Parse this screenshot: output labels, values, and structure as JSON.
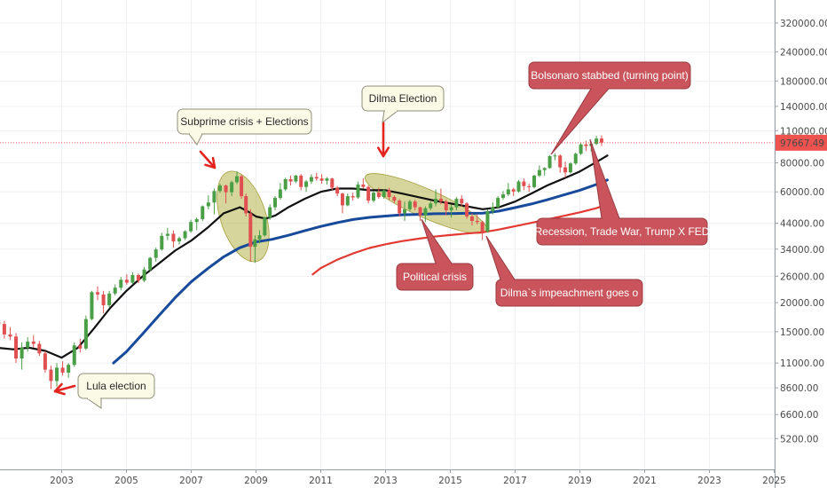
{
  "chart_data": {
    "type": "candlestick",
    "instrument_scale": "log",
    "grid": true,
    "x_ticks": [
      "2003",
      "2005",
      "2007",
      "2009",
      "2011",
      "2013",
      "2015",
      "2017",
      "2019",
      "2021",
      "2023",
      "2025"
    ],
    "y_ticks": [
      "5200.00",
      "6600.00",
      "8600.00",
      "11000.00",
      "15000.00",
      "20000.00",
      "26000.00",
      "34000.00",
      "44000.00",
      "60000.00",
      "80000.00",
      "110000.00",
      "140000.00",
      "180000.00",
      "240000.00",
      "320000.00"
    ],
    "last_price": 97667.49,
    "last_price_label": "97667.49",
    "colors": {
      "up": "#4a9e46",
      "down": "#e05050",
      "ma_black": "#111111",
      "ma_blue": "#174a9a",
      "ma_red": "#e23a32",
      "highlight": "#b5b24a",
      "price_line": "#ef5350",
      "label_bg": "#ef5350",
      "dark_callout_bg": "#c9545c",
      "light_callout_bg": "#fbfae6"
    },
    "candles": [
      {
        "t": 2001.05,
        "o": 16500,
        "h": 18000,
        "l": 15300,
        "c": 16200
      },
      {
        "t": 2001.23,
        "o": 16200,
        "h": 16700,
        "l": 14000,
        "c": 14600
      },
      {
        "t": 2001.41,
        "o": 14600,
        "h": 15700,
        "l": 13800,
        "c": 14300
      },
      {
        "t": 2001.59,
        "o": 14300,
        "h": 14800,
        "l": 11000,
        "c": 11500
      },
      {
        "t": 2001.77,
        "o": 11500,
        "h": 13500,
        "l": 10300,
        "c": 12800
      },
      {
        "t": 2001.95,
        "o": 12800,
        "h": 14200,
        "l": 12300,
        "c": 13600
      },
      {
        "t": 2002.13,
        "o": 13600,
        "h": 14500,
        "l": 12800,
        "c": 13300
      },
      {
        "t": 2002.31,
        "o": 13300,
        "h": 13700,
        "l": 11800,
        "c": 12100
      },
      {
        "t": 2002.49,
        "o": 12100,
        "h": 12400,
        "l": 10000,
        "c": 10300
      },
      {
        "t": 2002.67,
        "o": 10300,
        "h": 10700,
        "l": 8500,
        "c": 9200
      },
      {
        "t": 2002.85,
        "o": 9200,
        "h": 11000,
        "l": 8700,
        "c": 10500
      },
      {
        "t": 2003.03,
        "o": 10500,
        "h": 11200,
        "l": 9700,
        "c": 10000
      },
      {
        "t": 2003.21,
        "o": 10000,
        "h": 11000,
        "l": 9500,
        "c": 10800
      },
      {
        "t": 2003.39,
        "o": 10800,
        "h": 13500,
        "l": 10600,
        "c": 13100
      },
      {
        "t": 2003.57,
        "o": 13100,
        "h": 14000,
        "l": 12200,
        "c": 12700
      },
      {
        "t": 2003.75,
        "o": 12700,
        "h": 17600,
        "l": 12500,
        "c": 17000
      },
      {
        "t": 2003.93,
        "o": 17000,
        "h": 22500,
        "l": 16800,
        "c": 22200
      },
      {
        "t": 2004.11,
        "o": 22200,
        "h": 23500,
        "l": 20500,
        "c": 21700
      },
      {
        "t": 2004.29,
        "o": 21700,
        "h": 22500,
        "l": 18000,
        "c": 19500
      },
      {
        "t": 2004.47,
        "o": 19500,
        "h": 22500,
        "l": 19100,
        "c": 21900
      },
      {
        "t": 2004.65,
        "o": 21900,
        "h": 24000,
        "l": 21500,
        "c": 23200
      },
      {
        "t": 2004.83,
        "o": 23200,
        "h": 25800,
        "l": 22600,
        "c": 25100
      },
      {
        "t": 2005.01,
        "o": 25100,
        "h": 26500,
        "l": 23900,
        "c": 24400
      },
      {
        "t": 2005.19,
        "o": 24400,
        "h": 27000,
        "l": 24000,
        "c": 26300
      },
      {
        "t": 2005.37,
        "o": 26300,
        "h": 26700,
        "l": 24300,
        "c": 24900
      },
      {
        "t": 2005.55,
        "o": 24900,
        "h": 28500,
        "l": 24500,
        "c": 27800
      },
      {
        "t": 2005.73,
        "o": 27800,
        "h": 31500,
        "l": 27300,
        "c": 31200
      },
      {
        "t": 2005.91,
        "o": 31200,
        "h": 34500,
        "l": 30000,
        "c": 33900
      },
      {
        "t": 2006.09,
        "o": 33900,
        "h": 40000,
        "l": 33500,
        "c": 38800
      },
      {
        "t": 2006.27,
        "o": 38800,
        "h": 42000,
        "l": 37200,
        "c": 39600
      },
      {
        "t": 2006.45,
        "o": 39600,
        "h": 41000,
        "l": 34500,
        "c": 36700
      },
      {
        "t": 2006.63,
        "o": 36700,
        "h": 38500,
        "l": 35600,
        "c": 37900
      },
      {
        "t": 2006.81,
        "o": 37900,
        "h": 41000,
        "l": 37200,
        "c": 40600
      },
      {
        "t": 2006.99,
        "o": 40600,
        "h": 45500,
        "l": 40000,
        "c": 44500
      },
      {
        "t": 2007.17,
        "o": 44500,
        "h": 46500,
        "l": 41000,
        "c": 45800
      },
      {
        "t": 2007.35,
        "o": 45800,
        "h": 52500,
        "l": 45000,
        "c": 52000
      },
      {
        "t": 2007.53,
        "o": 52000,
        "h": 58000,
        "l": 50500,
        "c": 54000
      },
      {
        "t": 2007.71,
        "o": 54000,
        "h": 62000,
        "l": 48000,
        "c": 60500
      },
      {
        "t": 2007.89,
        "o": 60500,
        "h": 65000,
        "l": 59500,
        "c": 63900
      },
      {
        "t": 2008.07,
        "o": 63900,
        "h": 64500,
        "l": 53500,
        "c": 59800
      },
      {
        "t": 2008.25,
        "o": 59800,
        "h": 67000,
        "l": 57500,
        "c": 66000
      },
      {
        "t": 2008.41,
        "o": 66000,
        "h": 73500,
        "l": 64800,
        "c": 70000
      },
      {
        "t": 2008.55,
        "o": 70000,
        "h": 71000,
        "l": 56000,
        "c": 57500
      },
      {
        "t": 2008.69,
        "o": 57500,
        "h": 59000,
        "l": 47000,
        "c": 48500
      },
      {
        "t": 2008.83,
        "o": 48500,
        "h": 50500,
        "l": 30000,
        "c": 34800
      },
      {
        "t": 2008.97,
        "o": 34800,
        "h": 39000,
        "l": 29700,
        "c": 37500
      },
      {
        "t": 2009.11,
        "o": 37500,
        "h": 41000,
        "l": 36000,
        "c": 39000
      },
      {
        "t": 2009.27,
        "o": 39000,
        "h": 47000,
        "l": 38500,
        "c": 46500
      },
      {
        "t": 2009.43,
        "o": 46500,
        "h": 53000,
        "l": 45500,
        "c": 51500
      },
      {
        "t": 2009.59,
        "o": 51500,
        "h": 57500,
        "l": 50000,
        "c": 56500
      },
      {
        "t": 2009.75,
        "o": 56500,
        "h": 65500,
        "l": 55500,
        "c": 61500
      },
      {
        "t": 2009.91,
        "o": 61500,
        "h": 69000,
        "l": 60500,
        "c": 68000
      },
      {
        "t": 2010.07,
        "o": 68000,
        "h": 70500,
        "l": 64000,
        "c": 66500
      },
      {
        "t": 2010.23,
        "o": 66500,
        "h": 71000,
        "l": 65500,
        "c": 70500
      },
      {
        "t": 2010.39,
        "o": 70500,
        "h": 71500,
        "l": 61000,
        "c": 63000
      },
      {
        "t": 2010.55,
        "o": 63000,
        "h": 67500,
        "l": 60000,
        "c": 66500
      },
      {
        "t": 2010.71,
        "o": 66500,
        "h": 71500,
        "l": 65000,
        "c": 69500
      },
      {
        "t": 2010.87,
        "o": 69500,
        "h": 72500,
        "l": 67000,
        "c": 68500
      },
      {
        "t": 2011.03,
        "o": 68500,
        "h": 71500,
        "l": 65000,
        "c": 67000
      },
      {
        "t": 2011.19,
        "o": 67000,
        "h": 69500,
        "l": 64500,
        "c": 68500
      },
      {
        "t": 2011.35,
        "o": 68500,
        "h": 69000,
        "l": 61000,
        "c": 62500
      },
      {
        "t": 2011.51,
        "o": 62500,
        "h": 63500,
        "l": 57500,
        "c": 59000
      },
      {
        "t": 2011.67,
        "o": 59000,
        "h": 59500,
        "l": 48500,
        "c": 52500
      },
      {
        "t": 2011.83,
        "o": 52500,
        "h": 59000,
        "l": 52000,
        "c": 57500
      },
      {
        "t": 2011.99,
        "o": 57500,
        "h": 59500,
        "l": 55000,
        "c": 56800
      },
      {
        "t": 2012.15,
        "o": 56800,
        "h": 66500,
        "l": 56000,
        "c": 64500
      },
      {
        "t": 2012.31,
        "o": 64500,
        "h": 68500,
        "l": 62000,
        "c": 63000
      },
      {
        "t": 2012.47,
        "o": 63000,
        "h": 64000,
        "l": 53500,
        "c": 55000
      },
      {
        "t": 2012.63,
        "o": 55000,
        "h": 60500,
        "l": 54000,
        "c": 59500
      },
      {
        "t": 2012.79,
        "o": 59500,
        "h": 62500,
        "l": 56000,
        "c": 57000
      },
      {
        "t": 2012.95,
        "o": 57000,
        "h": 61500,
        "l": 56000,
        "c": 60900
      },
      {
        "t": 2013.11,
        "o": 60900,
        "h": 62500,
        "l": 55500,
        "c": 57000
      },
      {
        "t": 2013.27,
        "o": 57000,
        "h": 58000,
        "l": 53500,
        "c": 55000
      },
      {
        "t": 2013.43,
        "o": 55000,
        "h": 55800,
        "l": 47000,
        "c": 48500
      },
      {
        "t": 2013.59,
        "o": 48500,
        "h": 54500,
        "l": 45000,
        "c": 50500
      },
      {
        "t": 2013.75,
        "o": 50500,
        "h": 55500,
        "l": 49500,
        "c": 54500
      },
      {
        "t": 2013.91,
        "o": 54500,
        "h": 55500,
        "l": 50000,
        "c": 51500
      },
      {
        "t": 2014.07,
        "o": 51500,
        "h": 51800,
        "l": 45000,
        "c": 47500
      },
      {
        "t": 2014.23,
        "o": 47500,
        "h": 52000,
        "l": 44500,
        "c": 51000
      },
      {
        "t": 2014.39,
        "o": 51000,
        "h": 54500,
        "l": 50000,
        "c": 53500
      },
      {
        "t": 2014.55,
        "o": 53500,
        "h": 61500,
        "l": 52000,
        "c": 56000
      },
      {
        "t": 2014.71,
        "o": 56000,
        "h": 62000,
        "l": 53000,
        "c": 54500
      },
      {
        "t": 2014.87,
        "o": 54500,
        "h": 55500,
        "l": 47500,
        "c": 50000
      },
      {
        "t": 2015.03,
        "o": 50000,
        "h": 53000,
        "l": 46500,
        "c": 51500
      },
      {
        "t": 2015.19,
        "o": 51500,
        "h": 57000,
        "l": 50000,
        "c": 56000
      },
      {
        "t": 2015.35,
        "o": 56000,
        "h": 58000,
        "l": 52000,
        "c": 53500
      },
      {
        "t": 2015.51,
        "o": 53500,
        "h": 54000,
        "l": 46000,
        "c": 47000
      },
      {
        "t": 2015.67,
        "o": 47000,
        "h": 48500,
        "l": 43000,
        "c": 45000
      },
      {
        "t": 2015.83,
        "o": 45000,
        "h": 48000,
        "l": 43500,
        "c": 44500
      },
      {
        "t": 2015.99,
        "o": 44500,
        "h": 45000,
        "l": 37200,
        "c": 40500
      },
      {
        "t": 2016.15,
        "o": 40500,
        "h": 50500,
        "l": 40000,
        "c": 49500
      },
      {
        "t": 2016.31,
        "o": 49500,
        "h": 54000,
        "l": 48000,
        "c": 51500
      },
      {
        "t": 2016.47,
        "o": 51500,
        "h": 57500,
        "l": 51000,
        "c": 56500
      },
      {
        "t": 2016.63,
        "o": 56500,
        "h": 60500,
        "l": 55500,
        "c": 58500
      },
      {
        "t": 2016.79,
        "o": 58500,
        "h": 65500,
        "l": 57500,
        "c": 61500
      },
      {
        "t": 2016.95,
        "o": 61500,
        "h": 62500,
        "l": 57500,
        "c": 60200
      },
      {
        "t": 2017.11,
        "o": 60200,
        "h": 67500,
        "l": 59500,
        "c": 66500
      },
      {
        "t": 2017.27,
        "o": 66500,
        "h": 68500,
        "l": 61000,
        "c": 63500
      },
      {
        "t": 2017.43,
        "o": 63500,
        "h": 65000,
        "l": 60000,
        "c": 62900
      },
      {
        "t": 2017.59,
        "o": 62900,
        "h": 71000,
        "l": 62000,
        "c": 70500
      },
      {
        "t": 2017.75,
        "o": 70500,
        "h": 78000,
        "l": 69500,
        "c": 74500
      },
      {
        "t": 2017.91,
        "o": 74500,
        "h": 76500,
        "l": 70500,
        "c": 76000
      },
      {
        "t": 2018.07,
        "o": 76000,
        "h": 86500,
        "l": 75500,
        "c": 85500
      },
      {
        "t": 2018.23,
        "o": 85500,
        "h": 88000,
        "l": 82000,
        "c": 86000
      },
      {
        "t": 2018.39,
        "o": 86000,
        "h": 87000,
        "l": 72500,
        "c": 76500
      },
      {
        "t": 2018.55,
        "o": 76500,
        "h": 81000,
        "l": 69000,
        "c": 72800
      },
      {
        "t": 2018.71,
        "o": 72800,
        "h": 80500,
        "l": 72000,
        "c": 79500
      },
      {
        "t": 2018.87,
        "o": 79500,
        "h": 88500,
        "l": 78500,
        "c": 87500
      },
      {
        "t": 2019.03,
        "o": 87500,
        "h": 98000,
        "l": 86500,
        "c": 96000
      },
      {
        "t": 2019.19,
        "o": 96000,
        "h": 99500,
        "l": 90000,
        "c": 94500
      },
      {
        "t": 2019.35,
        "o": 94500,
        "h": 97000,
        "l": 89500,
        "c": 96500
      },
      {
        "t": 2019.51,
        "o": 96500,
        "h": 104500,
        "l": 95500,
        "c": 101800
      },
      {
        "t": 2019.67,
        "o": 101800,
        "h": 105000,
        "l": 94500,
        "c": 97667.49
      }
    ],
    "ma_black": [
      [
        2001.0,
        12800
      ],
      [
        2001.5,
        12600
      ],
      [
        2002.0,
        12800
      ],
      [
        2002.5,
        12400
      ],
      [
        2003.0,
        11600
      ],
      [
        2003.5,
        12800
      ],
      [
        2004.0,
        15500
      ],
      [
        2004.5,
        19000
      ],
      [
        2005.0,
        22500
      ],
      [
        2005.5,
        26000
      ],
      [
        2006.0,
        29500
      ],
      [
        2006.5,
        33500
      ],
      [
        2007.0,
        37000
      ],
      [
        2007.5,
        42000
      ],
      [
        2008.0,
        48500
      ],
      [
        2008.5,
        51500
      ],
      [
        2008.8,
        49000
      ],
      [
        2009.0,
        47000
      ],
      [
        2009.3,
        46000
      ],
      [
        2009.6,
        47500
      ],
      [
        2010.0,
        51500
      ],
      [
        2010.5,
        56000
      ],
      [
        2011.0,
        60000
      ],
      [
        2011.5,
        62000
      ],
      [
        2012.0,
        62000
      ],
      [
        2012.5,
        61000
      ],
      [
        2013.0,
        61000
      ],
      [
        2013.5,
        59000
      ],
      [
        2014.0,
        57000
      ],
      [
        2014.5,
        55000
      ],
      [
        2015.0,
        53500
      ],
      [
        2015.5,
        52000
      ],
      [
        2016.0,
        50500
      ],
      [
        2016.5,
        51500
      ],
      [
        2017.0,
        54500
      ],
      [
        2017.5,
        59000
      ],
      [
        2018.0,
        64000
      ],
      [
        2018.5,
        68500
      ],
      [
        2019.0,
        73500
      ],
      [
        2019.5,
        80500
      ],
      [
        2019.85,
        86000
      ]
    ],
    "ma_blue": [
      [
        2004.6,
        11000
      ],
      [
        2005.0,
        12300
      ],
      [
        2005.5,
        14700
      ],
      [
        2006.0,
        17600
      ],
      [
        2006.5,
        21000
      ],
      [
        2007.0,
        24600
      ],
      [
        2007.5,
        28000
      ],
      [
        2008.0,
        31500
      ],
      [
        2008.5,
        34500
      ],
      [
        2009.0,
        36500
      ],
      [
        2009.5,
        37500
      ],
      [
        2010.0,
        39000
      ],
      [
        2010.5,
        40800
      ],
      [
        2011.0,
        42600
      ],
      [
        2011.5,
        44200
      ],
      [
        2012.0,
        45600
      ],
      [
        2012.5,
        46600
      ],
      [
        2013.0,
        47200
      ],
      [
        2013.5,
        47800
      ],
      [
        2014.0,
        48000
      ],
      [
        2014.5,
        48300
      ],
      [
        2015.0,
        48400
      ],
      [
        2015.5,
        48500
      ],
      [
        2016.0,
        48600
      ],
      [
        2016.5,
        49600
      ],
      [
        2017.0,
        51300
      ],
      [
        2017.5,
        53200
      ],
      [
        2018.0,
        55500
      ],
      [
        2018.5,
        58200
      ],
      [
        2019.0,
        61000
      ],
      [
        2019.5,
        64500
      ],
      [
        2019.85,
        67500
      ]
    ],
    "ma_red": [
      [
        2010.75,
        26500
      ],
      [
        2011.0,
        28200
      ],
      [
        2011.5,
        30600
      ],
      [
        2012.0,
        32600
      ],
      [
        2012.5,
        34400
      ],
      [
        2013.0,
        35700
      ],
      [
        2013.5,
        36800
      ],
      [
        2014.0,
        37700
      ],
      [
        2014.5,
        38500
      ],
      [
        2015.0,
        39100
      ],
      [
        2015.5,
        39700
      ],
      [
        2016.0,
        40200
      ],
      [
        2016.5,
        41300
      ],
      [
        2017.0,
        42700
      ],
      [
        2017.5,
        44100
      ],
      [
        2018.0,
        45700
      ],
      [
        2018.5,
        47300
      ],
      [
        2019.0,
        49000
      ],
      [
        2019.5,
        51000
      ],
      [
        2019.85,
        53000
      ]
    ],
    "highlights": [
      {
        "cx": 2008.6,
        "cy": 48000,
        "rx_years": 0.7,
        "top": 75000,
        "bottom": 29500,
        "rotate": -18
      },
      {
        "cx": 2014.25,
        "cy": 53500,
        "rx_years": 2.05,
        "top": 61500,
        "bottom": 46500,
        "rotate": 24
      }
    ],
    "annotations": [
      {
        "id": "lula-election",
        "text": "Lula  election",
        "style": "light"
      },
      {
        "id": "subprime-elections",
        "text": "Subprime crisis + Elections",
        "style": "light"
      },
      {
        "id": "dilma-election",
        "text": "Dilma Election",
        "style": "light"
      },
      {
        "id": "bolsonaro-stabbed",
        "text": "Bolsonaro stabbed (turning point)",
        "style": "dark"
      },
      {
        "id": "recession-trade-war",
        "text": "Recession, Trade War, Trump X FED",
        "style": "dark"
      },
      {
        "id": "political-crisis",
        "text": "Political crisis",
        "style": "dark"
      },
      {
        "id": "dilma-impeachment",
        "text": "Dilma`s impeachment goes o",
        "style": "dark"
      }
    ]
  }
}
